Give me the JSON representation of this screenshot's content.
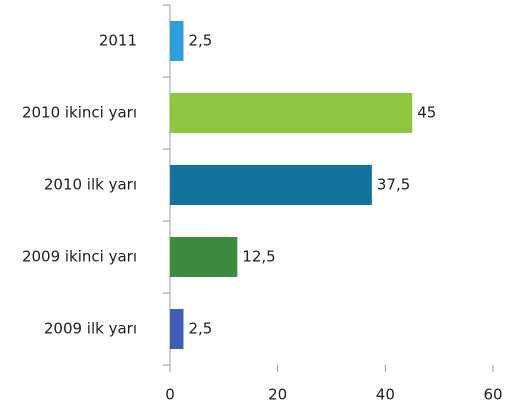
{
  "chart_data": {
    "type": "bar",
    "orientation": "horizontal",
    "categories": [
      "2011",
      "2010 ikinci yarı",
      "2010 ilk yarı",
      "2009 ikinci yarı",
      "2009 ilk yarı"
    ],
    "values": [
      2.5,
      45,
      37.5,
      12.5,
      2.5
    ],
    "value_labels": [
      "2,5",
      "45",
      "37,5",
      "12,5",
      "2,5"
    ],
    "colors": [
      "#2e9fd8",
      "#8dc63f",
      "#14729e",
      "#3e8a3e",
      "#3f5fb5"
    ],
    "xlim": [
      0,
      60
    ],
    "xticks": [
      0,
      20,
      40,
      60
    ],
    "grid": false
  }
}
